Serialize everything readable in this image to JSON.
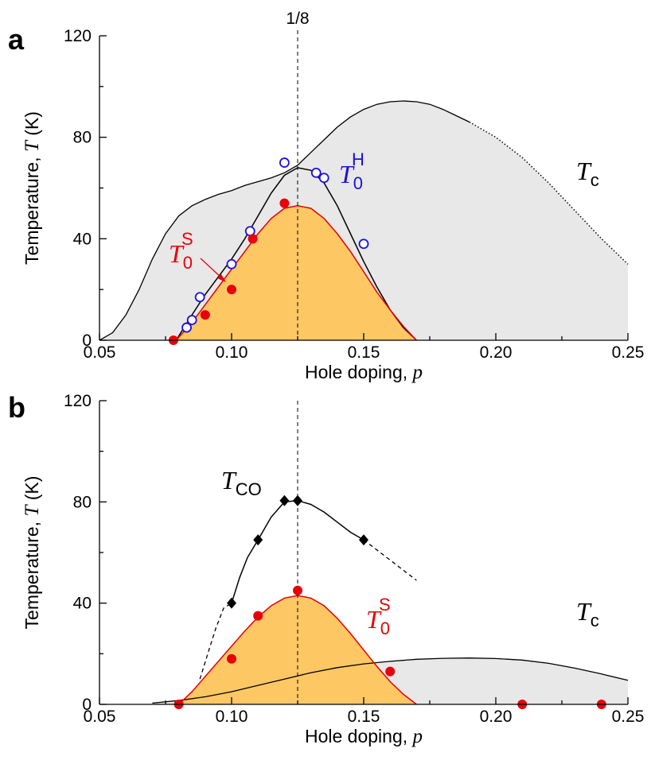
{
  "chart_data": [
    {
      "panel": "a",
      "type": "scatter",
      "xlabel": "Hole doping, ",
      "xlabel_italic": "p",
      "ylabel": "Temperature, ",
      "ylabel_italic": "T",
      "ylabel_unit": " (K)",
      "xlim": [
        0.05,
        0.25
      ],
      "ylim": [
        0,
        120
      ],
      "xticks": [
        "0.05",
        "0.10",
        "0.15",
        "0.20",
        "0.25"
      ],
      "yticks": [
        "0",
        "40",
        "80",
        "120"
      ],
      "vline": {
        "x": 0.125,
        "label": "1/8"
      },
      "tc_curve": {
        "label_main": "T",
        "label_sub": "c",
        "solid": [
          [
            0.05,
            0
          ],
          [
            0.055,
            3
          ],
          [
            0.06,
            10
          ],
          [
            0.065,
            20
          ],
          [
            0.07,
            32
          ],
          [
            0.075,
            42
          ],
          [
            0.08,
            49
          ],
          [
            0.085,
            53
          ],
          [
            0.09,
            55.5
          ],
          [
            0.095,
            57.5
          ],
          [
            0.1,
            59
          ],
          [
            0.105,
            61
          ],
          [
            0.11,
            62.5
          ],
          [
            0.115,
            64
          ],
          [
            0.12,
            66
          ],
          [
            0.125,
            69
          ],
          [
            0.13,
            74
          ],
          [
            0.135,
            79
          ],
          [
            0.14,
            84
          ],
          [
            0.145,
            88
          ],
          [
            0.15,
            91
          ],
          [
            0.155,
            93
          ],
          [
            0.16,
            94
          ],
          [
            0.165,
            94.3
          ],
          [
            0.17,
            94
          ],
          [
            0.175,
            93
          ],
          [
            0.18,
            91
          ],
          [
            0.185,
            88.5
          ],
          [
            0.19,
            86
          ]
        ],
        "dotted": [
          [
            0.19,
            86
          ],
          [
            0.2,
            80
          ],
          [
            0.21,
            72
          ],
          [
            0.22,
            62
          ],
          [
            0.23,
            51
          ],
          [
            0.24,
            40
          ],
          [
            0.25,
            30
          ]
        ]
      },
      "t0h_curve": {
        "label_main": "T",
        "label_sub": "0",
        "label_sup": "H",
        "points": [
          [
            0.079,
            0
          ],
          [
            0.085,
            10
          ],
          [
            0.09,
            18
          ],
          [
            0.095,
            25
          ],
          [
            0.1,
            32
          ],
          [
            0.105,
            40
          ],
          [
            0.11,
            49
          ],
          [
            0.115,
            58
          ],
          [
            0.12,
            65
          ],
          [
            0.125,
            68
          ],
          [
            0.13,
            67
          ],
          [
            0.135,
            62
          ],
          [
            0.14,
            53
          ],
          [
            0.145,
            42
          ],
          [
            0.15,
            31
          ],
          [
            0.155,
            21
          ],
          [
            0.16,
            12
          ],
          [
            0.165,
            5
          ],
          [
            0.17,
            0
          ]
        ]
      },
      "t0s_dome": {
        "label_main": "T",
        "label_sub": "0",
        "label_sup": "S",
        "points": [
          [
            0.079,
            0
          ],
          [
            0.085,
            7
          ],
          [
            0.09,
            14
          ],
          [
            0.095,
            21
          ],
          [
            0.1,
            28
          ],
          [
            0.105,
            35
          ],
          [
            0.11,
            42
          ],
          [
            0.115,
            48
          ],
          [
            0.12,
            52
          ],
          [
            0.125,
            53
          ],
          [
            0.13,
            52
          ],
          [
            0.135,
            48
          ],
          [
            0.14,
            42
          ],
          [
            0.145,
            35
          ],
          [
            0.15,
            27
          ],
          [
            0.155,
            19
          ],
          [
            0.16,
            12
          ],
          [
            0.165,
            5.5
          ],
          [
            0.17,
            0
          ]
        ]
      },
      "t0h_points": [
        [
          0.083,
          5
        ],
        [
          0.085,
          8
        ],
        [
          0.088,
          17
        ],
        [
          0.1,
          30
        ],
        [
          0.107,
          43
        ],
        [
          0.12,
          70
        ],
        [
          0.132,
          66
        ],
        [
          0.135,
          64
        ],
        [
          0.15,
          38
        ]
      ],
      "t0s_points": [
        [
          0.078,
          0
        ],
        [
          0.09,
          10
        ],
        [
          0.1,
          20
        ],
        [
          0.108,
          40
        ],
        [
          0.12,
          54
        ]
      ],
      "colors": {
        "dome": "#fdc764",
        "dome_edge": "#e8000b",
        "tc_fill": "#e8e8e8",
        "blue": "#1a10e0",
        "red": "#e8000b"
      }
    },
    {
      "panel": "b",
      "type": "scatter",
      "xlabel": "Hole doping, ",
      "xlabel_italic": "p",
      "ylabel": "Temperature, ",
      "ylabel_italic": "T",
      "ylabel_unit": " (K)",
      "xlim": [
        0.05,
        0.25
      ],
      "ylim": [
        0,
        120
      ],
      "xticks": [
        "0.05",
        "0.10",
        "0.15",
        "0.20",
        "0.25"
      ],
      "yticks": [
        "0",
        "40",
        "80",
        "120"
      ],
      "vline": {
        "x": 0.125
      },
      "tco_curve": {
        "label_main": "T",
        "label_sub": "CO",
        "dashed_low": [
          [
            0.088,
            10
          ],
          [
            0.091,
            20
          ],
          [
            0.094,
            30
          ],
          [
            0.097,
            38
          ],
          [
            0.1,
            40
          ]
        ],
        "solid": [
          [
            0.1,
            40
          ],
          [
            0.103,
            50
          ],
          [
            0.106,
            58
          ],
          [
            0.11,
            65
          ],
          [
            0.115,
            74
          ],
          [
            0.12,
            80
          ],
          [
            0.125,
            80.5
          ],
          [
            0.13,
            79
          ],
          [
            0.135,
            76
          ],
          [
            0.14,
            72
          ],
          [
            0.145,
            68
          ],
          [
            0.15,
            65
          ]
        ],
        "dashed_high": [
          [
            0.15,
            65
          ],
          [
            0.16,
            57
          ],
          [
            0.17,
            49
          ]
        ]
      },
      "tc_curve": {
        "label_main": "T",
        "label_sub": "c",
        "points": [
          [
            0.07,
            0.5
          ],
          [
            0.08,
            1.5
          ],
          [
            0.09,
            3
          ],
          [
            0.1,
            5
          ],
          [
            0.11,
            7.5
          ],
          [
            0.12,
            10
          ],
          [
            0.13,
            12.5
          ],
          [
            0.14,
            14.5
          ],
          [
            0.15,
            16
          ],
          [
            0.16,
            17
          ],
          [
            0.17,
            17.8
          ],
          [
            0.18,
            18.2
          ],
          [
            0.19,
            18.3
          ],
          [
            0.2,
            18.1
          ],
          [
            0.21,
            17.5
          ],
          [
            0.22,
            16.2
          ],
          [
            0.23,
            14.3
          ],
          [
            0.24,
            12
          ],
          [
            0.25,
            9.5
          ]
        ]
      },
      "t0s_dome": {
        "label_main": "T",
        "label_sub": "0",
        "label_sup": "S",
        "points": [
          [
            0.08,
            0
          ],
          [
            0.085,
            5
          ],
          [
            0.09,
            11
          ],
          [
            0.095,
            17
          ],
          [
            0.1,
            23
          ],
          [
            0.105,
            29
          ],
          [
            0.11,
            34.5
          ],
          [
            0.115,
            39
          ],
          [
            0.12,
            42
          ],
          [
            0.125,
            43
          ],
          [
            0.13,
            42
          ],
          [
            0.135,
            39
          ],
          [
            0.14,
            34
          ],
          [
            0.145,
            28
          ],
          [
            0.15,
            21.5
          ],
          [
            0.155,
            15
          ],
          [
            0.16,
            9
          ],
          [
            0.165,
            4
          ],
          [
            0.17,
            0
          ]
        ]
      },
      "tco_points": [
        [
          0.1,
          40
        ],
        [
          0.11,
          65
        ],
        [
          0.12,
          80.5
        ],
        [
          0.125,
          80.5
        ],
        [
          0.15,
          65
        ]
      ],
      "t0s_points": [
        [
          0.08,
          0
        ],
        [
          0.1,
          18
        ],
        [
          0.11,
          35
        ],
        [
          0.125,
          45
        ],
        [
          0.16,
          13
        ],
        [
          0.21,
          0
        ],
        [
          0.24,
          0
        ]
      ],
      "colors": {
        "dome": "#fdc764",
        "dome_edge": "#e8000b",
        "tc_fill": "#e8e8e8",
        "red": "#e8000b",
        "black": "#000000"
      }
    }
  ]
}
